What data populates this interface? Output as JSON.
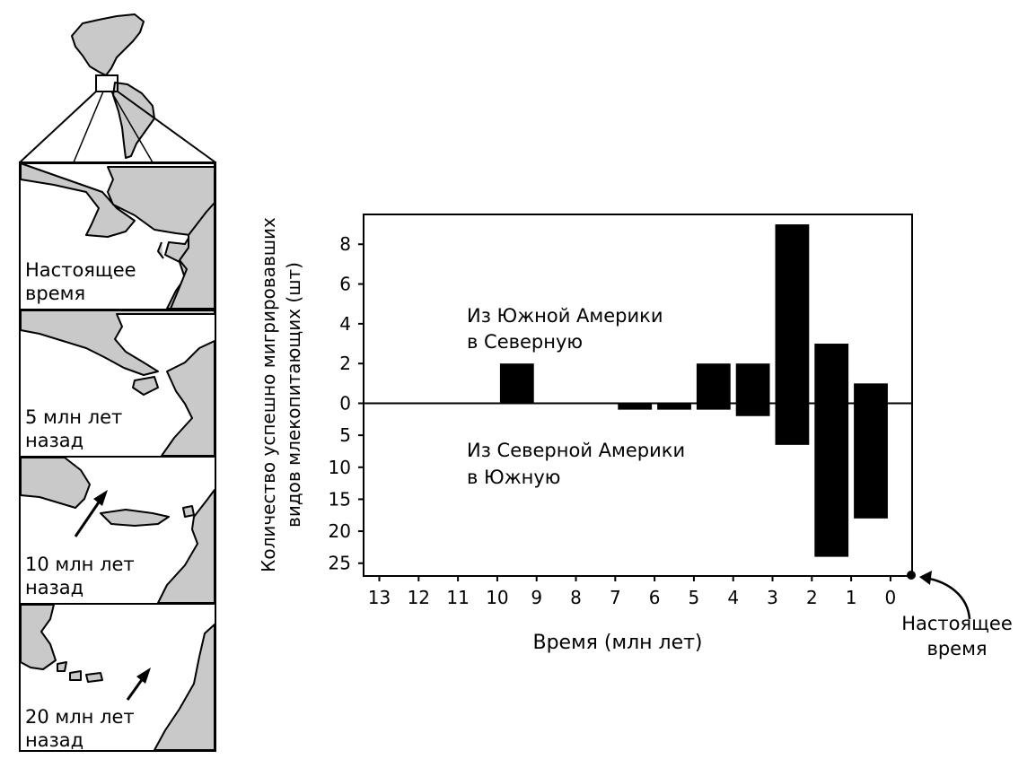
{
  "maps": {
    "panels": [
      {
        "label_lines": [
          "Настоящее",
          "время"
        ]
      },
      {
        "label_lines": [
          "5 млн лет",
          "назад"
        ]
      },
      {
        "label_lines": [
          "10 млн лет",
          "назад"
        ]
      },
      {
        "label_lines": [
          "20 млн лет",
          "назад"
        ]
      }
    ]
  },
  "chart_data": {
    "type": "bar",
    "ylabel_lines": [
      "Количество успешно мигрировавших",
      "видов млекопитающих (шт)"
    ],
    "xlabel": "Время (млн лет)",
    "x_ticks": [
      13,
      12,
      11,
      10,
      9,
      8,
      7,
      6,
      5,
      4,
      3,
      2,
      1,
      0
    ],
    "xlim": [
      13.4,
      -0.55
    ],
    "upper_axis": {
      "ticks": [
        0,
        2,
        4,
        6,
        8
      ],
      "ylim": [
        0,
        9.5
      ]
    },
    "lower_axis": {
      "ticks": [
        0,
        5,
        10,
        15,
        20,
        25
      ],
      "ylim": [
        0,
        27
      ]
    },
    "upper_label_lines": [
      "Из Южной Америки",
      "в Северную"
    ],
    "lower_label_lines": [
      "Из Северной Америки",
      "в Южную"
    ],
    "present_label_lines": [
      "Настоящее",
      "время"
    ],
    "series": [
      {
        "x": [
          9.5,
          6.5,
          5.5,
          4.5,
          3.5,
          2.5,
          1.5,
          0.5
        ],
        "values": [
          2,
          0,
          0,
          2,
          2,
          9,
          3,
          1
        ]
      },
      {
        "x": [
          9.5,
          6.5,
          5.5,
          4.5,
          3.5,
          2.5,
          1.5,
          0.5
        ],
        "values": [
          0,
          1,
          1,
          1,
          2,
          6.5,
          24,
          18
        ]
      }
    ],
    "grid": false,
    "bar_color": "#000000"
  }
}
